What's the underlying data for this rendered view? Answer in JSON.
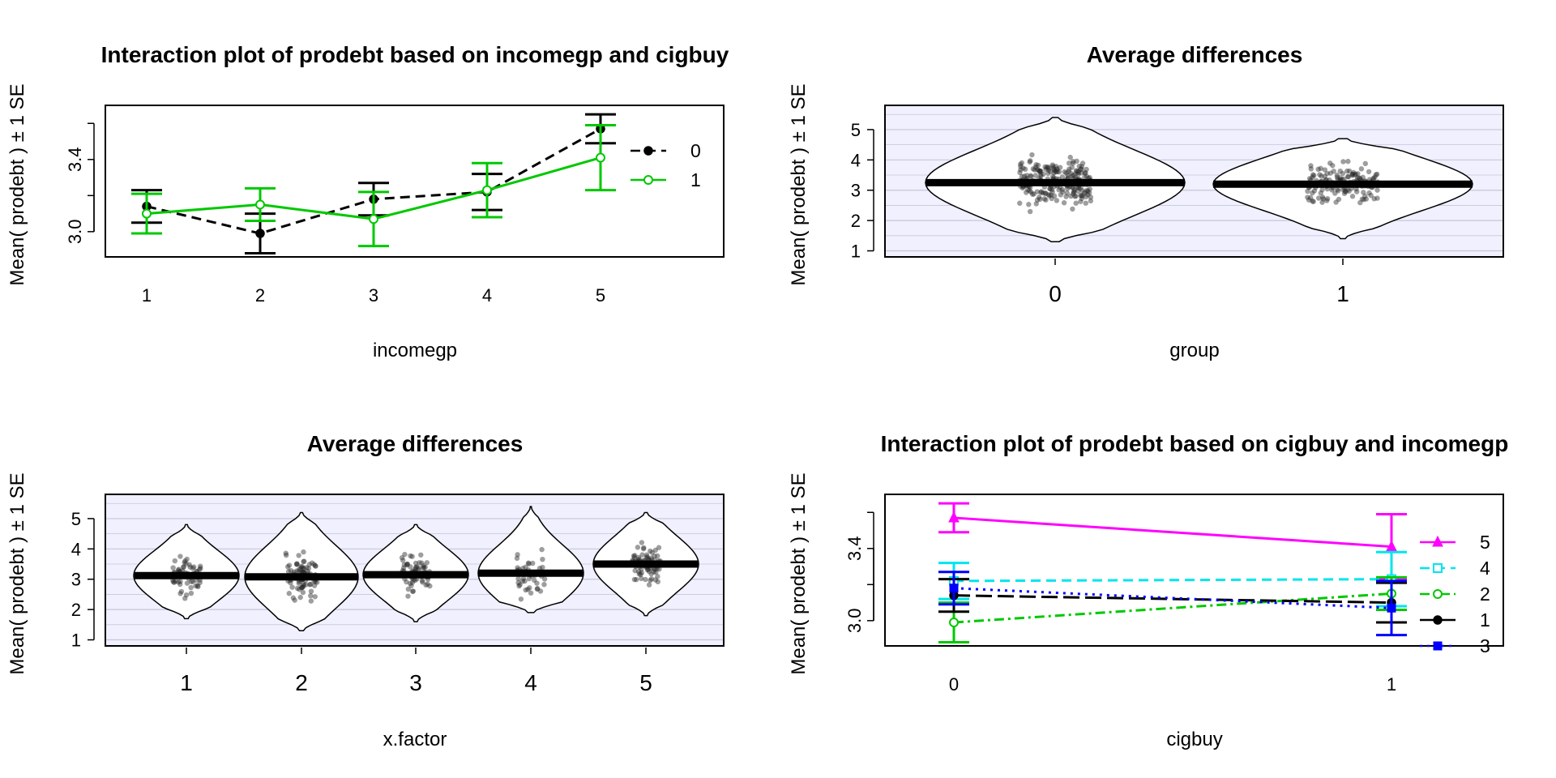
{
  "chart_data": [
    {
      "type": "line",
      "title": "Interaction plot of prodebt based on incomegp and cigbuy",
      "xlabel": "incomegp",
      "ylabel": "Mean( prodebt ) ± 1 SE",
      "categories": [
        "1",
        "2",
        "3",
        "4",
        "5"
      ],
      "ylim": [
        2.86,
        3.7
      ],
      "yticks": [
        3.0,
        3.4
      ],
      "ytick_labels": [
        "3.0",
        "3.4"
      ],
      "legend_position": "right",
      "series": [
        {
          "name": "0",
          "color": "#000000",
          "dash": "dashed",
          "marker": "filled-circle",
          "values": [
            3.14,
            2.99,
            3.18,
            3.22,
            3.57
          ],
          "se": [
            0.09,
            0.11,
            0.09,
            0.1,
            0.08
          ]
        },
        {
          "name": "1",
          "color": "#00c800",
          "dash": "solid",
          "marker": "open-circle",
          "values": [
            3.1,
            3.15,
            3.07,
            3.23,
            3.41
          ],
          "se": [
            0.11,
            0.09,
            0.15,
            0.15,
            0.18
          ]
        }
      ]
    },
    {
      "type": "violin",
      "title": "Average differences",
      "xlabel": "group",
      "ylabel": "Mean( prodebt ) ± 1 SE",
      "categories": [
        "0",
        "1"
      ],
      "ylim": [
        0.8,
        5.8
      ],
      "yticks": [
        1,
        2,
        3,
        4,
        5
      ],
      "ytick_labels": [
        "1",
        "2",
        "3",
        "4",
        "5"
      ],
      "means": [
        3.25,
        3.2
      ],
      "point_counts": [
        230,
        150
      ],
      "ranges": [
        [
          1.3,
          5.4
        ],
        [
          1.4,
          4.7
        ]
      ],
      "background": "#f0f0ff"
    },
    {
      "type": "violin",
      "title": "Average differences",
      "xlabel": "x.factor",
      "ylabel": "Mean( prodebt ) ± 1 SE",
      "categories": [
        "1",
        "2",
        "3",
        "4",
        "5"
      ],
      "ylim": [
        0.8,
        5.8
      ],
      "yticks": [
        1,
        2,
        3,
        4,
        5
      ],
      "ytick_labels": [
        "1",
        "2",
        "3",
        "4",
        "5"
      ],
      "means": [
        3.12,
        3.08,
        3.15,
        3.2,
        3.5
      ],
      "point_counts": [
        60,
        85,
        70,
        45,
        75
      ],
      "ranges": [
        [
          1.7,
          4.8
        ],
        [
          1.3,
          5.2
        ],
        [
          1.6,
          4.8
        ],
        [
          1.9,
          5.4
        ],
        [
          1.8,
          5.2
        ]
      ],
      "background": "#f0f0ff"
    },
    {
      "type": "line",
      "title": "Interaction plot of prodebt based on cigbuy and incomegp",
      "xlabel": "cigbuy",
      "ylabel": "Mean( prodebt ) ± 1 SE",
      "categories": [
        "0",
        "1"
      ],
      "ylim": [
        2.86,
        3.7
      ],
      "yticks": [
        3.0,
        3.4
      ],
      "ytick_labels": [
        "3.0",
        "3.4"
      ],
      "legend_position": "right",
      "series": [
        {
          "name": "5",
          "color": "#ff00ff",
          "dash": "solid",
          "marker": "filled-triangle",
          "values": [
            3.57,
            3.41
          ],
          "se": [
            0.08,
            0.18
          ]
        },
        {
          "name": "4",
          "color": "#00e5ee",
          "dash": "dashed",
          "marker": "open-square",
          "values": [
            3.22,
            3.23
          ],
          "se": [
            0.1,
            0.15
          ]
        },
        {
          "name": "2",
          "color": "#00c800",
          "dash": "dashdot",
          "marker": "open-circle",
          "values": [
            2.99,
            3.15
          ],
          "se": [
            0.11,
            0.09
          ]
        },
        {
          "name": "1",
          "color": "#000000",
          "dash": "longdash",
          "marker": "filled-circle",
          "values": [
            3.14,
            3.1
          ],
          "se": [
            0.09,
            0.11
          ]
        },
        {
          "name": "3",
          "color": "#0000ff",
          "dash": "dotted",
          "marker": "filled-square",
          "values": [
            3.18,
            3.07
          ],
          "se": [
            0.09,
            0.15
          ]
        }
      ]
    }
  ]
}
